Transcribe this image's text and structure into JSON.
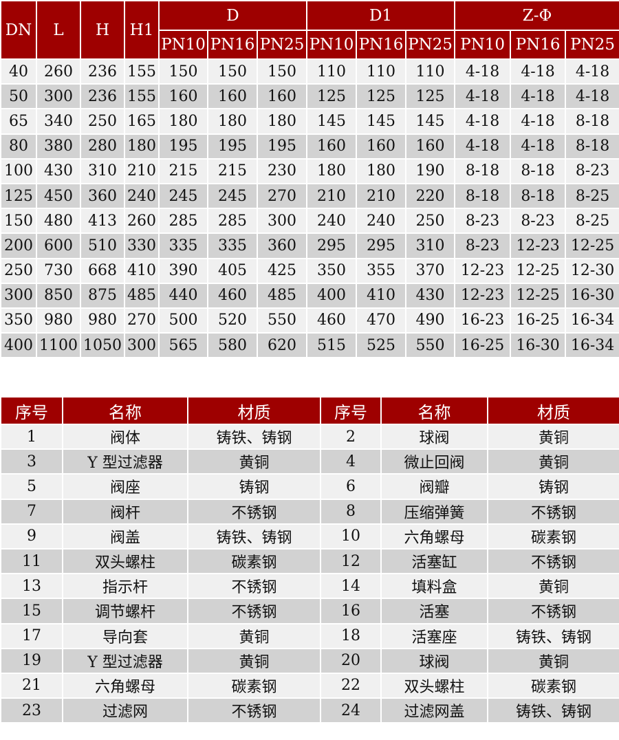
{
  "dimensions_table": {
    "colors": {
      "header_bg": "#9e0000",
      "row_light": "#f0f0f0",
      "row_dark": "#d2d2d2"
    },
    "headers": {
      "dn": "DN",
      "l": "L",
      "h": "H",
      "h1": "H1",
      "d": "D",
      "d1": "D1",
      "z": "Z-Φ",
      "sub": [
        "PN10",
        "PN16",
        "PN25",
        "PN10",
        "PN16",
        "PN25",
        "PN10",
        "PN16",
        "PN25"
      ]
    },
    "rows": [
      [
        "40",
        "260",
        "236",
        "155",
        "150",
        "150",
        "150",
        "110",
        "110",
        "110",
        "4-18",
        "4-18",
        "4-18"
      ],
      [
        "50",
        "300",
        "236",
        "155",
        "160",
        "160",
        "160",
        "125",
        "125",
        "125",
        "4-18",
        "4-18",
        "4-18"
      ],
      [
        "65",
        "340",
        "250",
        "165",
        "180",
        "180",
        "180",
        "145",
        "145",
        "145",
        "4-18",
        "4-18",
        "8-18"
      ],
      [
        "80",
        "380",
        "280",
        "180",
        "195",
        "195",
        "195",
        "160",
        "160",
        "160",
        "4-18",
        "4-18",
        "8-18"
      ],
      [
        "100",
        "430",
        "310",
        "210",
        "215",
        "215",
        "230",
        "180",
        "180",
        "190",
        "8-18",
        "8-18",
        "8-23"
      ],
      [
        "125",
        "450",
        "360",
        "240",
        "245",
        "245",
        "270",
        "210",
        "210",
        "220",
        "8-18",
        "8-18",
        "8-25"
      ],
      [
        "150",
        "480",
        "413",
        "260",
        "285",
        "285",
        "300",
        "240",
        "240",
        "250",
        "8-23",
        "8-23",
        "8-25"
      ],
      [
        "200",
        "600",
        "510",
        "330",
        "335",
        "335",
        "360",
        "295",
        "295",
        "310",
        "8-23",
        "12-23",
        "12-25"
      ],
      [
        "250",
        "730",
        "668",
        "410",
        "390",
        "405",
        "425",
        "350",
        "355",
        "370",
        "12-23",
        "12-25",
        "12-30"
      ],
      [
        "300",
        "850",
        "875",
        "485",
        "440",
        "460",
        "485",
        "400",
        "410",
        "430",
        "12-23",
        "12-25",
        "16-30"
      ],
      [
        "350",
        "980",
        "980",
        "270",
        "500",
        "520",
        "550",
        "460",
        "470",
        "490",
        "16-23",
        "16-25",
        "16-34"
      ],
      [
        "400",
        "1100",
        "1050",
        "300",
        "565",
        "580",
        "620",
        "515",
        "525",
        "550",
        "16-25",
        "16-30",
        "16-34"
      ]
    ]
  },
  "parts_table": {
    "headers": [
      "序号",
      "名称",
      "材质",
      "序号",
      "名称",
      "材质"
    ],
    "rows": [
      [
        "1",
        "阀体",
        "铸铁、铸钢",
        "2",
        "球阀",
        "黄铜"
      ],
      [
        "3",
        "Y 型过滤器",
        "黄铜",
        "4",
        "微止回阀",
        "黄铜"
      ],
      [
        "5",
        "阀座",
        "铸钢",
        "6",
        "阀瓣",
        "铸钢"
      ],
      [
        "7",
        "阀杆",
        "不锈钢",
        "8",
        "压缩弹簧",
        "不锈钢"
      ],
      [
        "9",
        "阀盖",
        "铸铁、铸钢",
        "10",
        "六角螺母",
        "碳素钢"
      ],
      [
        "11",
        "双头螺柱",
        "碳素钢",
        "12",
        "活塞缸",
        "不锈钢"
      ],
      [
        "13",
        "指示杆",
        "不锈钢",
        "14",
        "填料盒",
        "黄铜"
      ],
      [
        "15",
        "调节螺杆",
        "不锈钢",
        "16",
        "活塞",
        "不锈钢"
      ],
      [
        "17",
        "导向套",
        "黄铜",
        "18",
        "活塞座",
        "铸铁、铸钢"
      ],
      [
        "19",
        "Y 型过滤器",
        "黄铜",
        "20",
        "球阀",
        "黄铜"
      ],
      [
        "21",
        "六角螺母",
        "碳素钢",
        "22",
        "双头螺柱",
        "碳素钢"
      ],
      [
        "23",
        "过滤网",
        "不锈钢",
        "24",
        "过滤网盖",
        "铸铁、铸钢"
      ]
    ]
  }
}
